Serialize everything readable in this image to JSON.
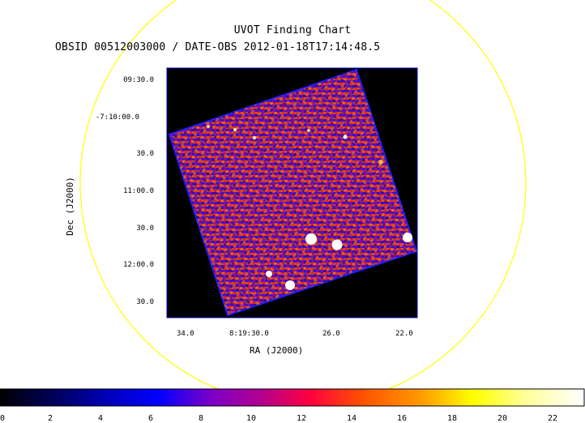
{
  "title": "UVOT Finding Chart",
  "subtitle": "OBSID 00512003000 / DATE-OBS 2012-01-18T17:14:48.5",
  "x_axis": {
    "label": "RA (J2000)",
    "ticks": [
      "34.0",
      "8:19:30.0",
      "26.0",
      "22.0"
    ]
  },
  "y_axis": {
    "label": "Dec (J2000)",
    "ticks": [
      "09:30.0",
      "-7:10:00.0",
      "30.0",
      "11:00.0",
      "30.0",
      "12:00.0",
      "30.0"
    ]
  },
  "colorbar": {
    "ticks": [
      "0",
      "2",
      "4",
      "6",
      "8",
      "10",
      "12",
      "14",
      "16",
      "18",
      "20",
      "22"
    ],
    "range": [
      0,
      23.2
    ]
  },
  "colors": {
    "circle": "#ffff00",
    "frame": "#0000c8",
    "background": "#000000"
  }
}
